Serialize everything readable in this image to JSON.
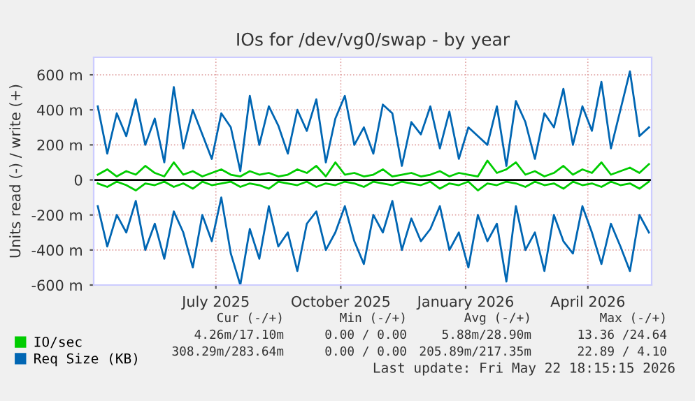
{
  "chart_data": {
    "type": "line",
    "title": "IOs for /dev/vg0/swap - by year",
    "ylabel": "Units read (-) / write (+)",
    "x": [
      "2025-04-05",
      "2025-04-12",
      "2025-04-19",
      "2025-04-26",
      "2025-05-03",
      "2025-05-10",
      "2025-05-17",
      "2025-05-24",
      "2025-05-31",
      "2025-06-07",
      "2025-06-14",
      "2025-06-21",
      "2025-06-28",
      "2025-07-05",
      "2025-07-12",
      "2025-07-19",
      "2025-07-26",
      "2025-08-02",
      "2025-08-09",
      "2025-08-16",
      "2025-08-23",
      "2025-08-30",
      "2025-09-06",
      "2025-09-13",
      "2025-09-20",
      "2025-09-27",
      "2025-10-04",
      "2025-10-11",
      "2025-10-18",
      "2025-10-25",
      "2025-11-01",
      "2025-11-08",
      "2025-11-15",
      "2025-11-22",
      "2025-11-29",
      "2025-12-06",
      "2025-12-13",
      "2025-12-20",
      "2025-12-27",
      "2026-01-03",
      "2026-01-10",
      "2026-01-17",
      "2026-01-24",
      "2026-01-31",
      "2026-02-07",
      "2026-02-14",
      "2026-02-21",
      "2026-02-28",
      "2026-03-07",
      "2026-03-14",
      "2026-03-21",
      "2026-03-28",
      "2026-04-04",
      "2026-04-11",
      "2026-04-18",
      "2026-04-25",
      "2026-05-02",
      "2026-05-09",
      "2026-05-16"
    ],
    "series": [
      {
        "color": "#0066b3",
        "values": [
          -150,
          -380,
          -200,
          -300,
          -120,
          -400,
          -250,
          -450,
          -180,
          -300,
          -500,
          -200,
          -350,
          -100,
          -420,
          -600,
          -280,
          -450,
          -150,
          -380,
          -300,
          -520,
          -250,
          -180,
          -400,
          -300,
          -150,
          -350,
          -480,
          -200,
          -300,
          -120,
          -400,
          -220,
          -350,
          -280,
          -150,
          -400,
          -300,
          -500,
          -200,
          -350,
          -250,
          -580,
          -150,
          -400,
          -300,
          -520,
          -200,
          -350,
          -420,
          -150,
          -300,
          -480,
          -250,
          -380,
          -520,
          -200,
          -300
        ]
      },
      {
        "name": "Req Size (KB)",
        "color": "#0066b3",
        "values": [
          420,
          150,
          380,
          250,
          460,
          200,
          350,
          100,
          530,
          180,
          400,
          260,
          120,
          380,
          300,
          50,
          480,
          200,
          420,
          310,
          150,
          400,
          280,
          460,
          100,
          350,
          480,
          200,
          300,
          150,
          430,
          380,
          80,
          330,
          260,
          420,
          180,
          390,
          120,
          300,
          250,
          200,
          420,
          80,
          450,
          330,
          120,
          380,
          300,
          520,
          200,
          420,
          280,
          560,
          180,
          400,
          620,
          250,
          300
        ]
      },
      {
        "color": "#00cc00",
        "values": [
          -20,
          -40,
          -10,
          -30,
          -60,
          -20,
          -30,
          -10,
          -40,
          -20,
          -50,
          -10,
          -30,
          -20,
          -10,
          -40,
          -20,
          -30,
          -50,
          -10,
          -20,
          -30,
          -10,
          -40,
          -20,
          -30,
          -10,
          -20,
          -40,
          -10,
          -20,
          -30,
          -10,
          -20,
          -30,
          -10,
          -50,
          -20,
          -30,
          -10,
          -60,
          -20,
          -30,
          -10,
          -20,
          -40,
          -10,
          -30,
          -20,
          -50,
          -10,
          -30,
          -20,
          -40,
          -10,
          -30,
          -20,
          -50,
          -10
        ]
      },
      {
        "name": "IO/sec",
        "color": "#00cc00",
        "values": [
          30,
          60,
          20,
          50,
          30,
          80,
          40,
          20,
          100,
          30,
          50,
          20,
          40,
          60,
          30,
          20,
          50,
          30,
          40,
          20,
          30,
          60,
          40,
          80,
          20,
          100,
          30,
          40,
          20,
          30,
          60,
          20,
          30,
          40,
          20,
          30,
          50,
          20,
          40,
          30,
          20,
          110,
          40,
          60,
          100,
          30,
          50,
          20,
          40,
          80,
          30,
          60,
          40,
          100,
          30,
          50,
          70,
          40,
          90
        ]
      }
    ],
    "xlim": [
      "2025-04-02",
      "2026-05-18"
    ],
    "xticks": [
      {
        "value": "2025-07-01",
        "label": "July 2025"
      },
      {
        "value": "2025-10-01",
        "label": "October 2025"
      },
      {
        "value": "2026-01-01",
        "label": "January 2026"
      },
      {
        "value": "2026-04-01",
        "label": "April 2026"
      }
    ],
    "ylim": [
      -600,
      700
    ],
    "yticks": [
      {
        "value": -600,
        "label": "-600 m"
      },
      {
        "value": -400,
        "label": "-400 m"
      },
      {
        "value": -200,
        "label": "-200 m"
      },
      0,
      {
        "value": 200,
        "label": "200 m"
      },
      {
        "value": 400,
        "label": "400 m"
      },
      {
        "value": 600,
        "label": "600 m"
      }
    ],
    "ref_lines": [
      {
        "axis": "y",
        "value": 0,
        "color": "#000000"
      }
    ],
    "grid": true,
    "legend": "bottom left",
    "annotations": [
      "Cur (-/+)",
      "Min (-/+)",
      "Avg (-/+)",
      "Max (-/+)",
      "4.26m/17.10m",
      "0.00 / 0.00",
      "5.88m/28.90m",
      "13.36 /24.64",
      "308.29m/283.64m",
      "0.00 / 0.00",
      "205.89m/217.35m",
      "22.89 / 4.10",
      "Last update: Fri May 22 18:15:15 2026"
    ]
  }
}
